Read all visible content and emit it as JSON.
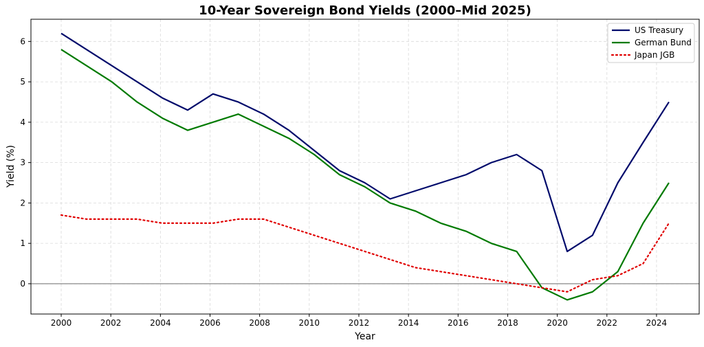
{
  "chart_data": {
    "type": "line",
    "title": "10-Year Sovereign Bond Yields (2000–Mid 2025)",
    "xlabel": "Year",
    "ylabel": "Yield (%)",
    "xlim": [
      1998.78,
      2025.72
    ],
    "ylim": [
      -0.75,
      6.55
    ],
    "x_ticks": [
      2000,
      2002,
      2004,
      2006,
      2008,
      2010,
      2012,
      2014,
      2016,
      2018,
      2020,
      2022,
      2024
    ],
    "y_ticks": [
      0,
      1,
      2,
      3,
      4,
      5,
      6
    ],
    "grid": true,
    "zero_line": true,
    "legend_position": "top-right",
    "x": [
      2000,
      2001.02,
      2002.04,
      2003.06,
      2004.08,
      2005.1,
      2006.12,
      2007.14,
      2008.16,
      2009.18,
      2010.2,
      2011.22,
      2012.24,
      2013.26,
      2014.28,
      2015.3,
      2016.32,
      2017.34,
      2018.36,
      2019.38,
      2020.4,
      2021.42,
      2022.44,
      2023.46,
      2024.5
    ],
    "series": [
      {
        "name": "US Treasury",
        "color": "#000a6b",
        "style": "solid",
        "values": [
          6.2,
          5.8,
          5.4,
          5.0,
          4.6,
          4.3,
          4.7,
          4.5,
          4.2,
          3.8,
          3.3,
          2.8,
          2.5,
          2.1,
          2.3,
          2.5,
          2.7,
          3.0,
          3.2,
          2.8,
          0.8,
          1.2,
          2.5,
          3.5,
          4.5
        ]
      },
      {
        "name": "German Bund",
        "color": "#007a00",
        "style": "solid",
        "values": [
          5.8,
          5.4,
          5.0,
          4.5,
          4.1,
          3.8,
          4.0,
          4.2,
          3.9,
          3.6,
          3.2,
          2.7,
          2.4,
          2.0,
          1.8,
          1.5,
          1.3,
          1.0,
          0.8,
          -0.1,
          -0.4,
          -0.2,
          0.3,
          1.5,
          2.5
        ]
      },
      {
        "name": "Japan JGB",
        "color": "#e00000",
        "style": "dotted",
        "values": [
          1.7,
          1.6,
          1.6,
          1.6,
          1.5,
          1.5,
          1.5,
          1.6,
          1.6,
          1.4,
          1.2,
          1.0,
          0.8,
          0.6,
          0.4,
          0.3,
          0.2,
          0.1,
          0.0,
          -0.1,
          -0.2,
          0.1,
          0.2,
          0.5,
          1.5
        ]
      }
    ]
  }
}
